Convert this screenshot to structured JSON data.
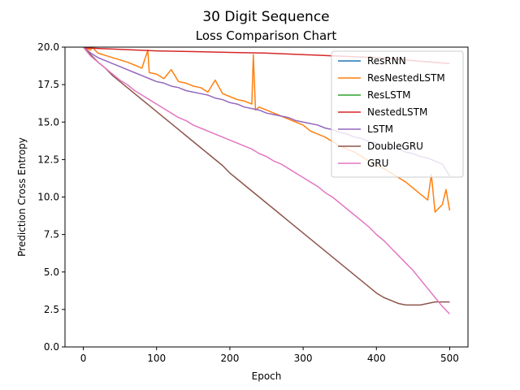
{
  "chart_data": {
    "type": "line",
    "title": "30 Digit Sequence",
    "subtitle": "Loss Comparison Chart",
    "xlabel": "Epoch",
    "ylabel": "Prediction Cross Entropy",
    "xlim": [
      -25,
      525
    ],
    "ylim": [
      0,
      20
    ],
    "xticks": [
      0,
      100,
      200,
      300,
      400,
      500
    ],
    "yticks": [
      0.0,
      2.5,
      5.0,
      7.5,
      10.0,
      12.5,
      15.0,
      17.5,
      20.0
    ],
    "xtick_labels": [
      "0",
      "100",
      "200",
      "300",
      "400",
      "500"
    ],
    "ytick_labels": [
      "0.0",
      "2.5",
      "5.0",
      "7.5",
      "10.0",
      "12.5",
      "15.0",
      "17.5",
      "20.0"
    ],
    "grid": false,
    "legend": "upper right",
    "series": [
      {
        "name": "ResRNN",
        "color": "#1f77b4",
        "x": [],
        "y": []
      },
      {
        "name": "ResNestedLSTM",
        "color": "#ff7f0e",
        "x": [
          0,
          10,
          12,
          20,
          40,
          60,
          80,
          88,
          90,
          100,
          110,
          120,
          130,
          140,
          150,
          160,
          170,
          180,
          190,
          200,
          210,
          220,
          230,
          232,
          235,
          240,
          250,
          260,
          270,
          280,
          290,
          300,
          310,
          320,
          330,
          340,
          350,
          360,
          370,
          380,
          390,
          400,
          410,
          420,
          430,
          440,
          450,
          460,
          470,
          475,
          480,
          490,
          495,
          500
        ],
        "y": [
          20.0,
          19.8,
          20.0,
          19.6,
          19.3,
          19.0,
          18.6,
          19.8,
          18.3,
          18.2,
          17.9,
          18.5,
          17.7,
          17.6,
          17.4,
          17.3,
          17.0,
          17.8,
          16.9,
          16.7,
          16.5,
          16.4,
          16.2,
          19.5,
          15.8,
          16.0,
          15.8,
          15.6,
          15.4,
          15.2,
          15.0,
          14.8,
          14.4,
          14.2,
          14.0,
          13.7,
          13.4,
          13.2,
          13.0,
          12.7,
          12.4,
          12.1,
          11.9,
          11.6,
          11.3,
          11.0,
          10.6,
          10.2,
          9.8,
          11.5,
          9.0,
          9.5,
          10.5,
          9.1
        ]
      },
      {
        "name": "ResLSTM",
        "color": "#2ca02c",
        "x": [],
        "y": []
      },
      {
        "name": "NestedLSTM",
        "color": "#d62728",
        "x": [
          0,
          50,
          100,
          150,
          200,
          250,
          300,
          350,
          400,
          450,
          500
        ],
        "y": [
          19.95,
          19.85,
          19.75,
          19.7,
          19.65,
          19.6,
          19.5,
          19.4,
          19.3,
          19.1,
          18.9
        ]
      },
      {
        "name": "LSTM",
        "color": "#9467bd",
        "x": [
          0,
          10,
          20,
          30,
          40,
          50,
          60,
          70,
          80,
          90,
          100,
          110,
          120,
          130,
          140,
          150,
          160,
          170,
          180,
          190,
          200,
          210,
          220,
          230,
          240,
          250,
          260,
          270,
          280,
          290,
          300,
          310,
          320,
          330,
          340,
          350,
          360,
          370,
          380,
          390,
          400,
          410,
          420,
          430,
          440,
          450,
          460,
          470,
          480,
          490,
          500
        ],
        "y": [
          20.0,
          19.6,
          19.3,
          19.1,
          18.9,
          18.7,
          18.5,
          18.3,
          18.1,
          17.9,
          17.7,
          17.6,
          17.4,
          17.3,
          17.1,
          17.0,
          16.9,
          16.8,
          16.6,
          16.5,
          16.3,
          16.2,
          16.0,
          15.9,
          15.8,
          15.6,
          15.5,
          15.4,
          15.3,
          15.1,
          15.0,
          14.9,
          14.8,
          14.6,
          14.5,
          14.3,
          14.2,
          14.0,
          13.9,
          13.7,
          13.6,
          13.4,
          13.3,
          13.2,
          13.0,
          12.9,
          12.7,
          12.6,
          12.4,
          12.2,
          11.4
        ]
      },
      {
        "name": "DoubleGRU",
        "color": "#8c564b",
        "x": [
          0,
          10,
          20,
          30,
          40,
          50,
          60,
          70,
          80,
          90,
          100,
          110,
          120,
          130,
          140,
          150,
          160,
          170,
          180,
          190,
          200,
          210,
          220,
          230,
          240,
          250,
          260,
          270,
          280,
          290,
          300,
          310,
          320,
          330,
          340,
          350,
          360,
          370,
          380,
          390,
          400,
          410,
          420,
          430,
          440,
          450,
          460,
          470,
          480,
          490,
          500
        ],
        "y": [
          20.0,
          19.5,
          19.0,
          18.6,
          18.1,
          17.7,
          17.3,
          16.9,
          16.5,
          16.1,
          15.7,
          15.3,
          14.9,
          14.5,
          14.1,
          13.7,
          13.3,
          12.9,
          12.5,
          12.1,
          11.6,
          11.2,
          10.8,
          10.4,
          10.0,
          9.6,
          9.2,
          8.8,
          8.4,
          8.0,
          7.6,
          7.2,
          6.8,
          6.4,
          6.0,
          5.6,
          5.2,
          4.8,
          4.4,
          4.0,
          3.6,
          3.3,
          3.1,
          2.9,
          2.8,
          2.8,
          2.8,
          2.9,
          3.0,
          3.0,
          3.0
        ]
      },
      {
        "name": "GRU",
        "color": "#e377c2",
        "x": [
          0,
          10,
          20,
          30,
          40,
          50,
          60,
          70,
          80,
          90,
          100,
          110,
          120,
          130,
          140,
          150,
          160,
          170,
          180,
          190,
          200,
          210,
          220,
          230,
          240,
          250,
          260,
          270,
          280,
          290,
          300,
          310,
          320,
          330,
          340,
          350,
          360,
          370,
          380,
          390,
          400,
          410,
          420,
          430,
          440,
          450,
          460,
          470,
          480,
          490,
          500
        ],
        "y": [
          20.0,
          19.4,
          19.0,
          18.6,
          18.2,
          17.8,
          17.5,
          17.1,
          16.8,
          16.5,
          16.2,
          15.9,
          15.6,
          15.3,
          15.1,
          14.8,
          14.6,
          14.4,
          14.2,
          14.0,
          13.8,
          13.6,
          13.4,
          13.2,
          12.9,
          12.7,
          12.4,
          12.2,
          11.9,
          11.6,
          11.3,
          11.0,
          10.7,
          10.3,
          10.0,
          9.6,
          9.2,
          8.8,
          8.4,
          8.0,
          7.5,
          7.1,
          6.6,
          6.1,
          5.6,
          5.1,
          4.5,
          3.9,
          3.3,
          2.7,
          2.2
        ]
      }
    ]
  }
}
